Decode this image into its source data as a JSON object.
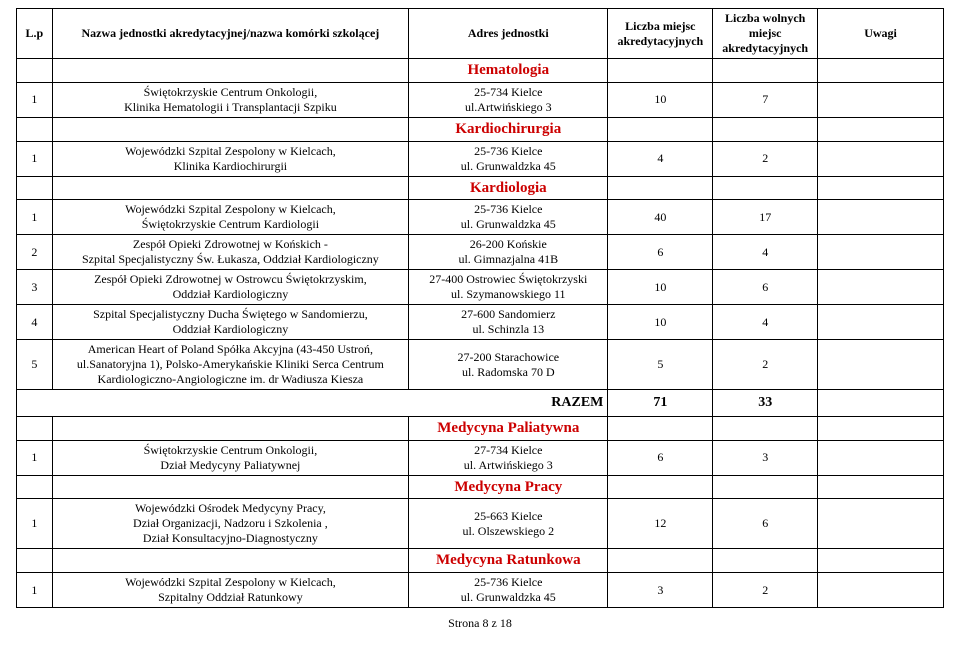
{
  "headers": {
    "lp": "L.p",
    "name": "Nazwa jednostki akredytacyjnej/nazwa komórki szkolącej",
    "addr": "Adres jednostki",
    "col1": "Liczba miejsc akredytacyjnych",
    "col2": "Liczba wolnych miejsc akredytacyjnych",
    "uwagi": "Uwagi"
  },
  "sections": [
    {
      "title": "Hematologia",
      "rows": [
        {
          "lp": "1",
          "name": "Świętokrzyskie Centrum Onkologii,\nKlinika Hematologii i Transplantacji Szpiku",
          "addr": "25-734 Kielce\nul.Artwińskiego 3",
          "v1": "10",
          "v2": "7",
          "uw": ""
        }
      ]
    },
    {
      "title": "Kardiochirurgia",
      "rows": [
        {
          "lp": "1",
          "name": "Wojewódzki Szpital Zespolony w Kielcach,\nKlinika Kardiochirurgii",
          "addr": "25-736 Kielce\nul. Grunwaldzka 45",
          "v1": "4",
          "v2": "2",
          "uw": ""
        }
      ]
    },
    {
      "title": "Kardiologia",
      "rows": [
        {
          "lp": "1",
          "name": "Wojewódzki Szpital Zespolony w Kielcach,\nŚwiętokrzyskie Centrum Kardiologii",
          "addr": "25-736 Kielce\nul. Grunwaldzka 45",
          "v1": "40",
          "v2": "17",
          "uw": ""
        },
        {
          "lp": "2",
          "name": "Zespół Opieki Zdrowotnej w Końskich -\nSzpital Specjalistyczny Św. Łukasza, Oddział Kardiologiczny",
          "addr": "26-200 Końskie\nul. Gimnazjalna 41B",
          "v1": "6",
          "v2": "4",
          "uw": ""
        },
        {
          "lp": "3",
          "name": "Zespół Opieki Zdrowotnej w Ostrowcu Świętokrzyskim,\nOddział Kardiologiczny",
          "addr": "27-400 Ostrowiec Świętokrzyski\nul. Szymanowskiego 11",
          "v1": "10",
          "v2": "6",
          "uw": ""
        },
        {
          "lp": "4",
          "name": "Szpital Specjalistyczny Ducha Świętego w Sandomierzu,\nOddział Kardiologiczny",
          "addr": "27-600 Sandomierz\nul. Schinzla 13",
          "v1": "10",
          "v2": "4",
          "uw": ""
        },
        {
          "lp": "5",
          "name": "American Heart of Poland Spółka Akcyjna (43-450 Ustroń,\nul.Sanatoryjna 1), Polsko-Amerykańskie Kliniki Serca Centrum\nKardiologiczno-Angiologiczne im. dr Wadiusza Kiesza",
          "addr": "27-200 Starachowice\nul. Radomska 70 D",
          "v1": "5",
          "v2": "2",
          "uw": ""
        }
      ],
      "razem": {
        "label": "RAZEM",
        "v1": "71",
        "v2": "33"
      }
    },
    {
      "title": "Medycyna Paliatywna",
      "rows": [
        {
          "lp": "1",
          "name": "Świętokrzyskie Centrum Onkologii,\nDział Medycyny Paliatywnej",
          "addr": "27-734 Kielce\nul. Artwińskiego 3",
          "v1": "6",
          "v2": "3",
          "uw": ""
        }
      ]
    },
    {
      "title": "Medycyna Pracy",
      "rows": [
        {
          "lp": "1",
          "name": "Wojewódzki Ośrodek Medycyny Pracy,\nDział Organizacji, Nadzoru i Szkolenia ,\nDział Konsultacyjno-Diagnostyczny",
          "addr": "25-663 Kielce\nul. Olszewskiego 2",
          "v1": "12",
          "v2": "6",
          "uw": ""
        }
      ]
    },
    {
      "title": "Medycyna Ratunkowa",
      "rows": [
        {
          "lp": "1",
          "name": "Wojewódzki Szpital Zespolony w Kielcach,\nSzpitalny Oddział Ratunkowy",
          "addr": "25-736 Kielce\nul. Grunwaldzka 45",
          "v1": "3",
          "v2": "2",
          "uw": ""
        }
      ]
    }
  ],
  "footer": "Strona 8 z 18",
  "colors": {
    "section_title": "#cc0000",
    "border": "#000000",
    "text": "#000000",
    "background": "#ffffff"
  },
  "fonts": {
    "family": "Times New Roman",
    "body_pt": 12,
    "section_pt": 15
  }
}
